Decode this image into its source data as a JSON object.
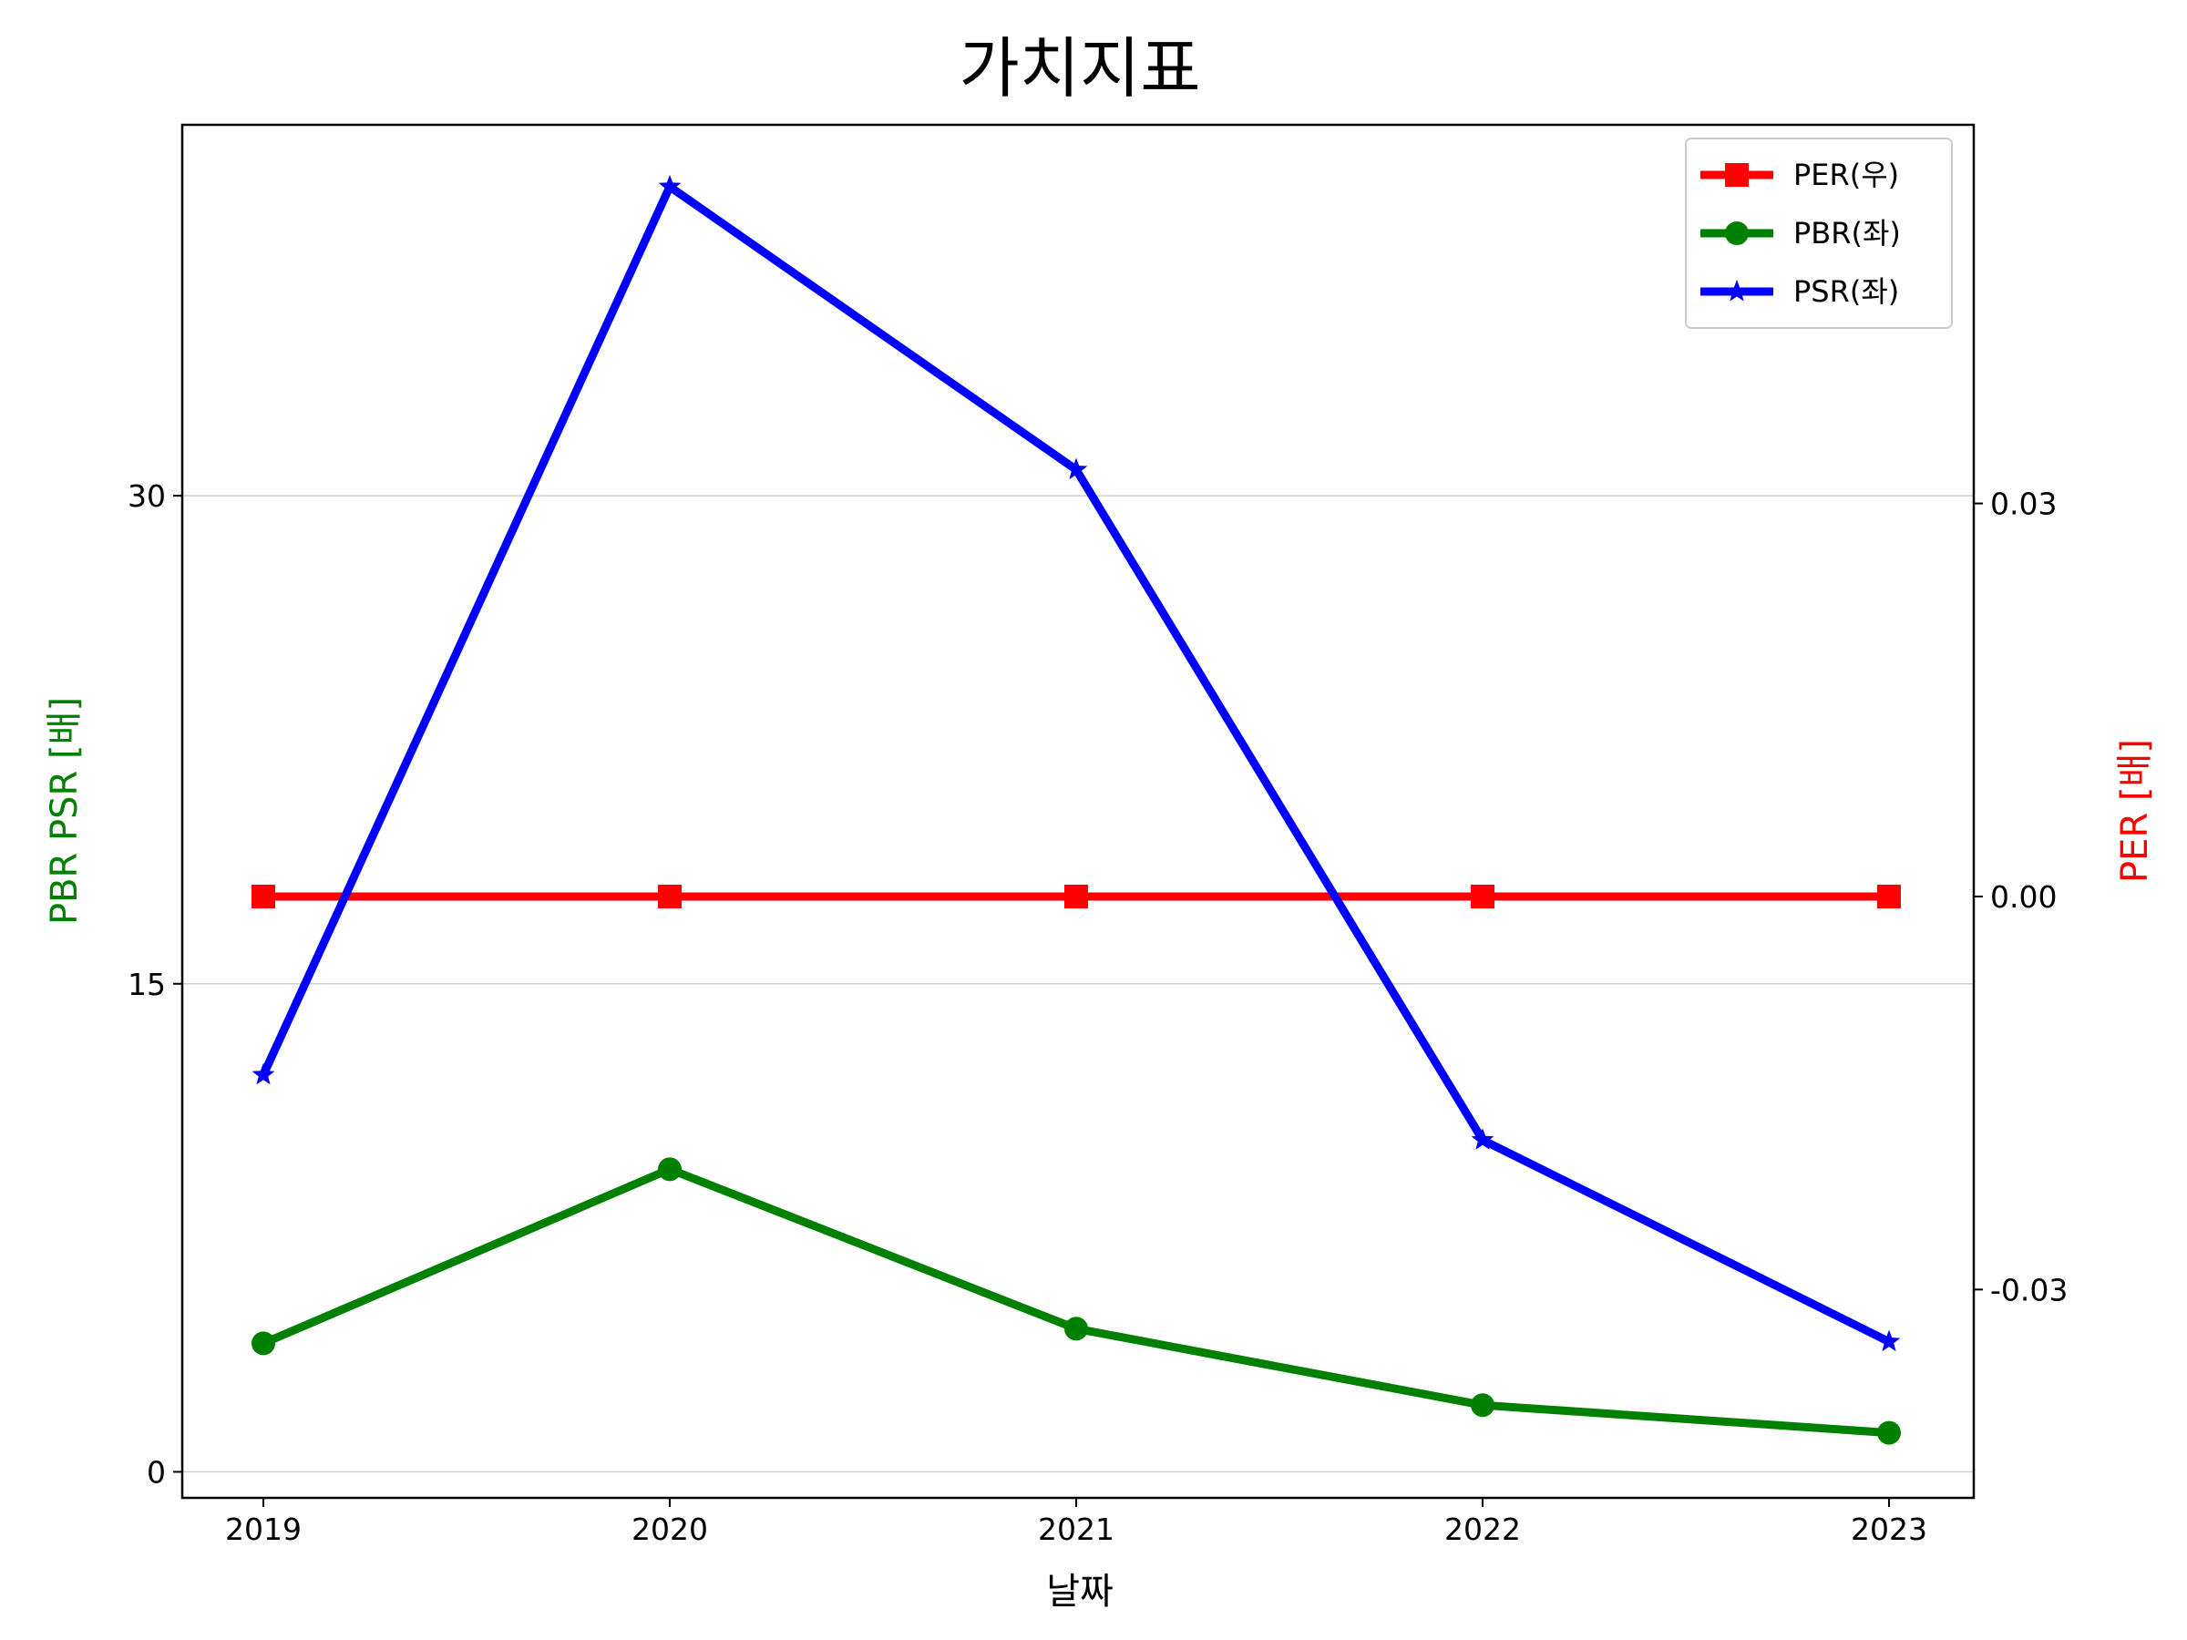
{
  "chart_data": {
    "type": "line",
    "title": "가치지표",
    "xlabel": "날짜",
    "ylabel_left": "PBR PSR [배]",
    "ylabel_right": "PER [배]",
    "ylabel_left_color": "#008000",
    "ylabel_right_color": "#ff0000",
    "categories": [
      "2019",
      "2020",
      "2021",
      "2022",
      "2023"
    ],
    "ylim_left": [
      -0.8,
      41.4
    ],
    "ylim_right": [
      -0.0459,
      0.0589
    ],
    "yticks_left": [
      0,
      15,
      30
    ],
    "ytick_labels_left": [
      "0",
      "15",
      "30"
    ],
    "yticks_right": [
      -0.03,
      0.0,
      0.03
    ],
    "ytick_labels_right": [
      "-0.03",
      "0.00",
      "0.03"
    ],
    "grid": "horizontal, left axis",
    "legend_position": "top-right",
    "series": [
      {
        "name": "PER(우)",
        "axis": "right",
        "color": "#ff0000",
        "marker": "square",
        "values": [
          0.0,
          0.0,
          0.0,
          0.0,
          0.0
        ]
      },
      {
        "name": "PBR(좌)",
        "axis": "left",
        "color": "#008000",
        "marker": "circle",
        "values": [
          3.95,
          9.3,
          4.4,
          2.05,
          1.2
        ]
      },
      {
        "name": "PSR(좌)",
        "axis": "left",
        "color": "#0000ff",
        "marker": "star",
        "values": [
          12.2,
          39.5,
          30.8,
          10.2,
          4.0
        ]
      }
    ]
  }
}
